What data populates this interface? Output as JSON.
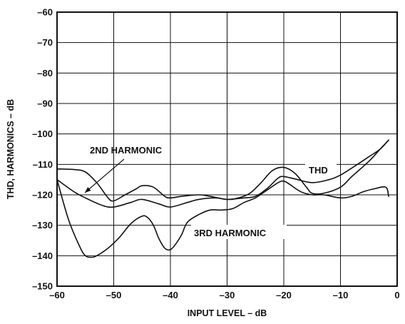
{
  "chart_data": {
    "type": "line",
    "xlabel": "INPUT LEVEL – dB",
    "ylabel": "THD, HARMONICS – dB",
    "xlim": [
      -60,
      0
    ],
    "ylim": [
      -150,
      -60
    ],
    "xticks": [
      -60,
      -50,
      -40,
      -30,
      -20,
      -10,
      0
    ],
    "yticks": [
      -60,
      -70,
      -80,
      -90,
      -100,
      -110,
      -120,
      -130,
      -140,
      -150
    ],
    "grid": true,
    "series": [
      {
        "name": "THD",
        "x": [
          -60,
          -57,
          -55,
          -52,
          -50,
          -47,
          -45,
          -42,
          -40,
          -37,
          -35,
          -32,
          -30,
          -27,
          -25,
          -23,
          -21,
          -20,
          -18,
          -15,
          -12,
          -10,
          -7,
          -5,
          -3,
          -1.5
        ],
        "y": [
          -115,
          -119,
          -121,
          -123.5,
          -124,
          -122.5,
          -121.5,
          -123,
          -124,
          -122.5,
          -121.5,
          -121,
          -121.5,
          -121,
          -120.5,
          -118,
          -114.5,
          -114,
          -114.8,
          -116,
          -115,
          -113.5,
          -110,
          -107.5,
          -105,
          -102
        ]
      },
      {
        "name": "2ND HARMONIC",
        "x": [
          -60,
          -57,
          -55,
          -53,
          -51,
          -50,
          -48,
          -46,
          -45,
          -43,
          -41,
          -40,
          -38,
          -35,
          -33,
          -30,
          -28,
          -26,
          -24,
          -22,
          -20,
          -18,
          -16,
          -15,
          -13,
          -10,
          -8,
          -5,
          -3,
          -2,
          -1.5
        ],
        "y": [
          -111.5,
          -111.7,
          -112.5,
          -116,
          -121,
          -122,
          -120,
          -118,
          -117,
          -117.5,
          -120.5,
          -121,
          -120.5,
          -120,
          -120.5,
          -121.5,
          -121,
          -119.5,
          -116,
          -112,
          -111,
          -113,
          -117.5,
          -119.5,
          -119.5,
          -117.5,
          -114,
          -109,
          -105,
          -103,
          -102
        ]
      },
      {
        "name": "3RD HARMONIC",
        "x": [
          -60,
          -58,
          -56,
          -55,
          -54,
          -53,
          -51,
          -49,
          -47,
          -45,
          -44,
          -43,
          -42,
          -41,
          -40,
          -39,
          -38,
          -37,
          -35,
          -33,
          -31,
          -29,
          -27,
          -25,
          -23,
          -21,
          -20,
          -19,
          -17,
          -15,
          -13,
          -10,
          -8,
          -6,
          -4,
          -2,
          -1.5
        ],
        "y": [
          -115,
          -128,
          -137,
          -140,
          -140.5,
          -140,
          -137.5,
          -134,
          -129.5,
          -127,
          -127.5,
          -130,
          -134.5,
          -137.5,
          -138,
          -136,
          -133,
          -129,
          -126.5,
          -125,
          -125,
          -124.5,
          -122.5,
          -121,
          -118.5,
          -116,
          -115.5,
          -116.5,
          -119,
          -120,
          -120,
          -121,
          -120.5,
          -119,
          -118,
          -117.5,
          -120.5
        ]
      }
    ],
    "annotations": [
      {
        "text": "THD"
      },
      {
        "text": "2ND HARMONIC"
      },
      {
        "text": "3RD HARMONIC"
      }
    ]
  }
}
